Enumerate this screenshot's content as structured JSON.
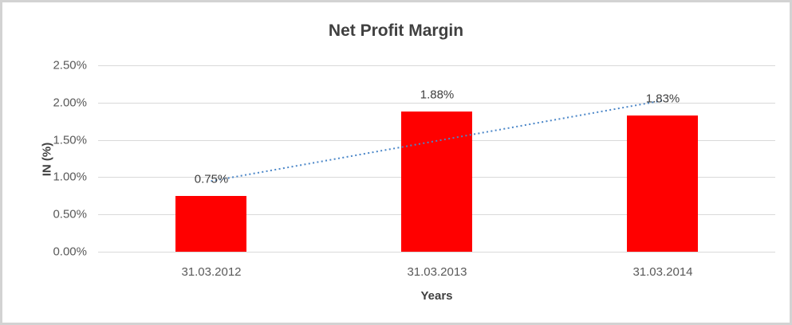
{
  "chart_data": {
    "type": "bar",
    "title": "Net Profit Margin",
    "categories": [
      "31.03.2012",
      "31.03.2013",
      "31.03.2014"
    ],
    "values": [
      0.75,
      1.88,
      1.83
    ],
    "value_labels": [
      "0.75%",
      "1.88%",
      "1.83%"
    ],
    "xlabel": "Years",
    "ylabel": "IN (%)",
    "ylim": [
      0,
      2.5
    ],
    "yticks": [
      0,
      0.5,
      1.0,
      1.5,
      2.0,
      2.5
    ],
    "ytick_labels": [
      "0.00%",
      "0.50%",
      "1.00%",
      "1.50%",
      "2.00%",
      "2.50%"
    ],
    "grid": "horizontal",
    "legend": "none",
    "trendline": {
      "type": "linear",
      "style": "dotted"
    },
    "colors": {
      "bar": "#FF0000",
      "trendline": "#4A86C8",
      "gridline": "#D9D9D9",
      "tick_text": "#595959",
      "label_text": "#404040",
      "title_text": "#404040",
      "frame_border": "#D3D3D3",
      "background": "#FFFFFF"
    }
  }
}
